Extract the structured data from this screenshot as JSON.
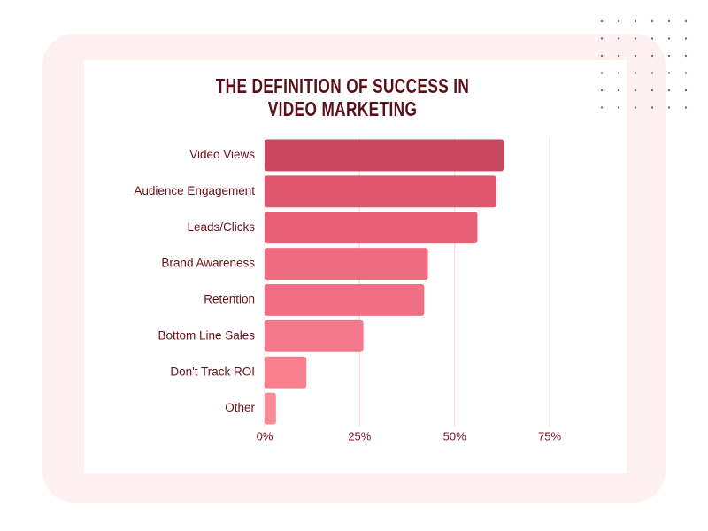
{
  "chart_data": {
    "type": "barh",
    "title": "THE DEFINITION OF SUCCESS IN VIDEO MARKETING",
    "categories": [
      "Video Views",
      "Audience Engagement",
      "Leads/Clicks",
      "Brand Awareness",
      "Retention",
      "Bottom Line Sales",
      "Don't Track ROI",
      "Other"
    ],
    "values": [
      63,
      61,
      56,
      43,
      42,
      26,
      11,
      3
    ],
    "colors": [
      "#c9475f",
      "#e0566e",
      "#e85f76",
      "#ee6b80",
      "#f06f84",
      "#f5798c",
      "#f7808f",
      "#f98a98"
    ],
    "xlim": [
      0,
      75
    ],
    "xticks": [
      {
        "value": 0,
        "label": "0%"
      },
      {
        "value": 25,
        "label": "25%"
      },
      {
        "value": 50,
        "label": "50%"
      },
      {
        "value": 75,
        "label": "75%"
      }
    ],
    "grid": true
  }
}
